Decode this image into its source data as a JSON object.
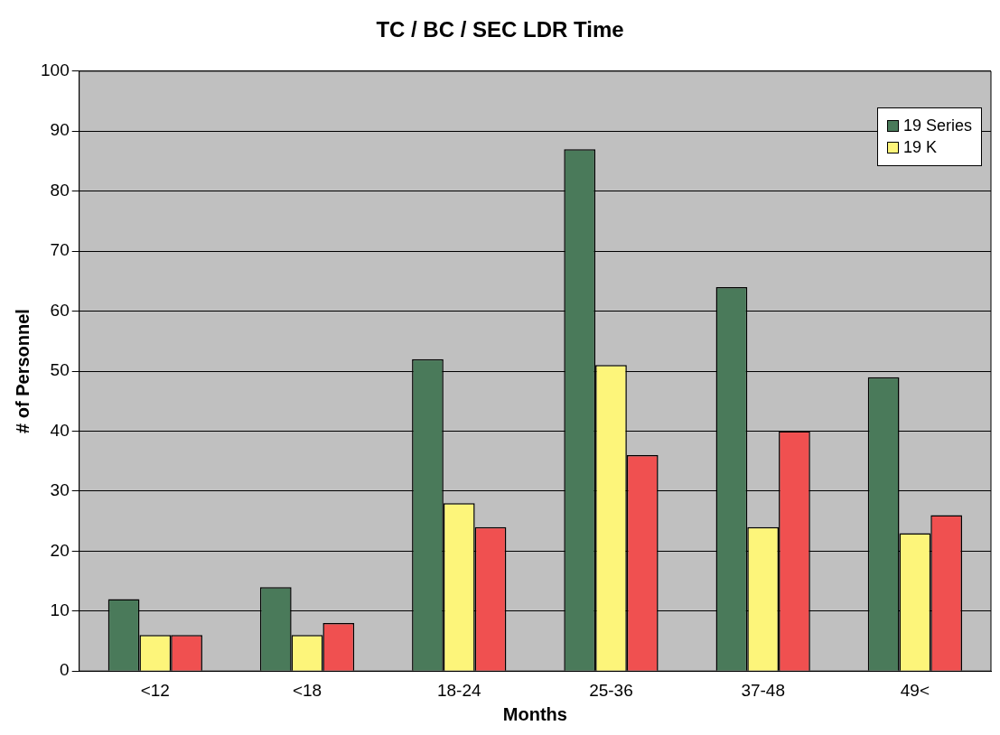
{
  "chart_data": {
    "type": "bar",
    "title": "TC / BC / SEC LDR Time",
    "xlabel": "Months",
    "ylabel": "# of Personnel",
    "categories": [
      "<12",
      "<18",
      "18-24",
      "25-36",
      "37-48",
      "49<"
    ],
    "series": [
      {
        "name": "19 Series",
        "color": "#4a7a5a",
        "values": [
          12,
          14,
          52,
          87,
          64,
          49
        ]
      },
      {
        "name": "19 K",
        "color": "#fdf57a",
        "values": [
          6,
          6,
          28,
          51,
          24,
          23
        ]
      },
      {
        "color": "#f05050",
        "values": [
          6,
          8,
          24,
          36,
          40,
          26
        ]
      }
    ],
    "ylim": [
      0,
      100
    ],
    "yticks": [
      0,
      10,
      20,
      30,
      40,
      50,
      60,
      70,
      80,
      90,
      100
    ],
    "grid": "y",
    "legend": "top right"
  }
}
